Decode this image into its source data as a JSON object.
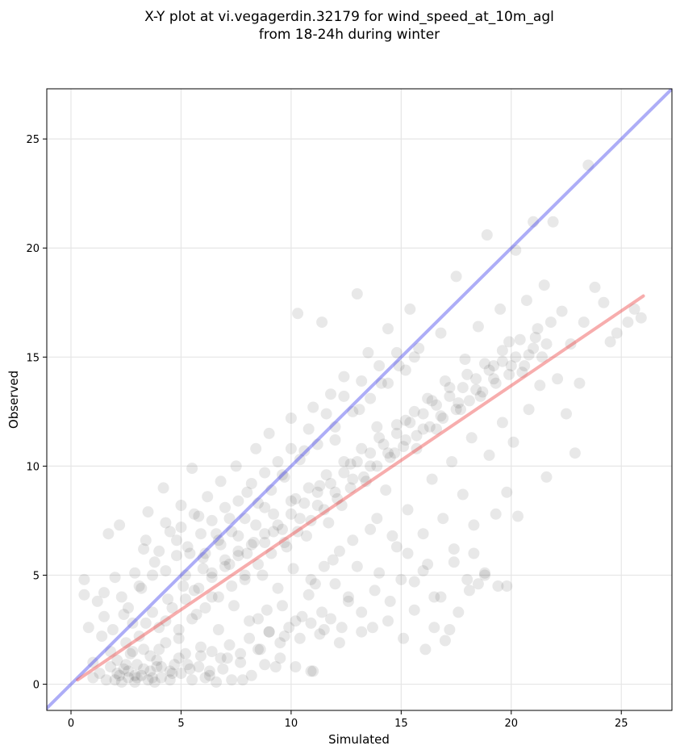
{
  "title": {
    "line1": "X-Y plot at vi.vegagerdin.32179 for wind_speed_at_10m_agl",
    "line2": "from 18-24h during winter"
  },
  "chart_data": {
    "type": "scatter",
    "title": "X-Y plot at vi.vegagerdin.32179 for wind_speed_at_10m_agl from 18-24h during winter",
    "xlabel": "Simulated",
    "ylabel": "Observed",
    "xlim": [
      -1.1,
      27.3
    ],
    "ylim": [
      -1.2,
      27.3
    ],
    "x_ticks": [
      0,
      5,
      10,
      15,
      20,
      25
    ],
    "y_ticks": [
      0,
      5,
      10,
      15,
      20,
      25
    ],
    "x_tick_labels": [
      "0",
      "5",
      "10",
      "15",
      "20",
      "25"
    ],
    "y_tick_labels": [
      "0",
      "5",
      "10",
      "15",
      "20",
      "25"
    ],
    "grid": true,
    "point_color": "#000000",
    "point_opacity": 0.09,
    "lines": [
      {
        "color": "#4a4aee",
        "x": [
          -1.1,
          27.3
        ],
        "y": [
          -1.1,
          27.3
        ]
      },
      {
        "color": "#ee4a4a",
        "x": [
          0.3,
          26.0
        ],
        "y": [
          0.2,
          17.8
        ]
      }
    ],
    "points": [
      [
        0.6,
        4.8
      ],
      [
        0.6,
        4.1
      ],
      [
        0.8,
        2.6
      ],
      [
        1.0,
        1.0
      ],
      [
        1.2,
        3.8
      ],
      [
        1.4,
        2.2
      ],
      [
        1.5,
        4.2
      ],
      [
        1.7,
        6.9
      ],
      [
        1.8,
        1.5
      ],
      [
        2.0,
        4.9
      ],
      [
        2.2,
        7.3
      ],
      [
        2.2,
        0.4
      ],
      [
        2.4,
        3.2
      ],
      [
        2.5,
        1.9
      ],
      [
        2.6,
        0.6
      ],
      [
        2.8,
        2.8
      ],
      [
        3.0,
        0.3
      ],
      [
        3.1,
        4.5
      ],
      [
        3.3,
        6.2
      ],
      [
        3.5,
        7.9
      ],
      [
        3.6,
        1.3
      ],
      [
        3.8,
        5.6
      ],
      [
        3.9,
        0.8
      ],
      [
        4.0,
        2.6
      ],
      [
        4.2,
        9.0
      ],
      [
        4.3,
        7.4
      ],
      [
        4.4,
        3.9
      ],
      [
        4.6,
        0.5
      ],
      [
        4.8,
        6.6
      ],
      [
        4.9,
        2.1
      ],
      [
        5.0,
        8.2
      ],
      [
        5.1,
        4.5
      ],
      [
        5.3,
        0.9
      ],
      [
        5.4,
        6.0
      ],
      [
        5.5,
        9.9
      ],
      [
        5.7,
        3.2
      ],
      [
        5.8,
        7.7
      ],
      [
        5.9,
        1.7
      ],
      [
        6.0,
        5.3
      ],
      [
        6.2,
        8.6
      ],
      [
        6.3,
        0.4
      ],
      [
        6.4,
        4.0
      ],
      [
        6.6,
        6.9
      ],
      [
        6.7,
        2.5
      ],
      [
        6.8,
        9.3
      ],
      [
        7.0,
        5.7
      ],
      [
        7.1,
        1.2
      ],
      [
        7.2,
        7.6
      ],
      [
        7.4,
        3.6
      ],
      [
        7.5,
        10.0
      ],
      [
        7.6,
        6.1
      ],
      [
        7.8,
        0.2
      ],
      [
        7.9,
        4.8
      ],
      [
        8.0,
        8.8
      ],
      [
        8.1,
        2.9
      ],
      [
        8.3,
        6.5
      ],
      [
        8.4,
        10.8
      ],
      [
        8.5,
        1.6
      ],
      [
        8.7,
        5.0
      ],
      [
        8.8,
        8.1
      ],
      [
        8.9,
        3.4
      ],
      [
        9.0,
        11.5
      ],
      [
        9.2,
        7.0
      ],
      [
        9.3,
        0.8
      ],
      [
        9.4,
        4.4
      ],
      [
        9.6,
        9.6
      ],
      [
        9.7,
        2.2
      ],
      [
        9.8,
        6.3
      ],
      [
        10.0,
        12.2
      ],
      [
        10.1,
        5.3
      ],
      [
        10.2,
        8.5
      ],
      [
        10.3,
        17.0
      ],
      [
        10.5,
        3.1
      ],
      [
        10.6,
        10.7
      ],
      [
        10.7,
        6.8
      ],
      [
        10.9,
        0.6
      ],
      [
        11.0,
        12.7
      ],
      [
        11.1,
        4.6
      ],
      [
        11.3,
        9.1
      ],
      [
        11.4,
        16.6
      ],
      [
        11.5,
        2.5
      ],
      [
        11.7,
        7.4
      ],
      [
        11.8,
        13.3
      ],
      [
        11.9,
        5.7
      ],
      [
        12.0,
        11.2
      ],
      [
        12.2,
        1.9
      ],
      [
        12.3,
        8.2
      ],
      [
        12.4,
        14.1
      ],
      [
        12.6,
        4.0
      ],
      [
        12.7,
        10.1
      ],
      [
        12.8,
        6.6
      ],
      [
        13.0,
        17.9
      ],
      [
        13.1,
        12.6
      ],
      [
        13.2,
        3.3
      ],
      [
        13.4,
        9.3
      ],
      [
        13.5,
        15.2
      ],
      [
        13.6,
        7.1
      ],
      [
        13.7,
        2.6
      ],
      [
        13.9,
        11.8
      ],
      [
        14.0,
        5.1
      ],
      [
        14.1,
        13.8
      ],
      [
        14.3,
        8.9
      ],
      [
        14.4,
        16.3
      ],
      [
        14.5,
        3.8
      ],
      [
        14.7,
        10.6
      ],
      [
        14.8,
        6.3
      ],
      [
        14.9,
        14.6
      ],
      [
        15.1,
        2.1
      ],
      [
        15.2,
        12.1
      ],
      [
        15.3,
        8.0
      ],
      [
        15.4,
        17.2
      ],
      [
        15.6,
        4.7
      ],
      [
        15.7,
        10.8
      ],
      [
        15.8,
        15.4
      ],
      [
        16.0,
        6.9
      ],
      [
        16.1,
        1.6
      ],
      [
        16.2,
        13.1
      ],
      [
        16.4,
        9.4
      ],
      [
        16.5,
        4.0
      ],
      [
        16.6,
        11.7
      ],
      [
        16.8,
        16.1
      ],
      [
        16.9,
        7.6
      ],
      [
        17.0,
        13.9
      ],
      [
        17.2,
        2.5
      ],
      [
        17.3,
        10.2
      ],
      [
        17.4,
        5.6
      ],
      [
        17.5,
        18.7
      ],
      [
        17.7,
        12.6
      ],
      [
        17.8,
        8.7
      ],
      [
        17.9,
        14.9
      ],
      [
        18.1,
        4.3
      ],
      [
        18.2,
        11.3
      ],
      [
        18.3,
        7.3
      ],
      [
        18.5,
        16.4
      ],
      [
        18.6,
        13.2
      ],
      [
        18.8,
        5.1
      ],
      [
        18.9,
        20.6
      ],
      [
        19.0,
        10.5
      ],
      [
        19.2,
        14.6
      ],
      [
        19.3,
        7.8
      ],
      [
        19.5,
        17.2
      ],
      [
        19.6,
        12.0
      ],
      [
        19.8,
        4.5
      ],
      [
        19.9,
        15.7
      ],
      [
        20.1,
        11.1
      ],
      [
        20.2,
        19.9
      ],
      [
        20.3,
        7.7
      ],
      [
        20.5,
        14.3
      ],
      [
        20.7,
        17.6
      ],
      [
        20.8,
        12.6
      ],
      [
        21.0,
        21.2
      ],
      [
        21.1,
        15.9
      ],
      [
        21.3,
        13.7
      ],
      [
        21.5,
        18.3
      ],
      [
        21.6,
        9.5
      ],
      [
        21.8,
        16.6
      ],
      [
        21.9,
        21.2
      ],
      [
        22.1,
        14.0
      ],
      [
        22.3,
        17.1
      ],
      [
        22.5,
        12.4
      ],
      [
        22.7,
        15.6
      ],
      [
        22.9,
        10.6
      ],
      [
        23.1,
        13.8
      ],
      [
        23.3,
        16.6
      ],
      [
        23.5,
        23.8
      ],
      [
        23.8,
        18.2
      ],
      [
        24.2,
        17.5
      ],
      [
        24.5,
        15.7
      ],
      [
        24.8,
        16.1
      ],
      [
        25.3,
        16.6
      ],
      [
        25.6,
        17.2
      ],
      [
        25.9,
        16.8
      ],
      [
        1.0,
        0.3
      ],
      [
        1.3,
        0.5
      ],
      [
        1.6,
        0.2
      ],
      [
        1.8,
        0.8
      ],
      [
        2.0,
        0.2
      ],
      [
        2.1,
        1.1
      ],
      [
        2.3,
        0.1
      ],
      [
        2.4,
        0.7
      ],
      [
        2.6,
        0.3
      ],
      [
        2.7,
        1.4
      ],
      [
        2.9,
        0.1
      ],
      [
        3.0,
        0.9
      ],
      [
        3.2,
        0.4
      ],
      [
        3.3,
        1.6
      ],
      [
        3.5,
        0.2
      ],
      [
        3.6,
        0.6
      ],
      [
        3.8,
        0.1
      ],
      [
        3.9,
        1.1
      ],
      [
        4.1,
        0.3
      ],
      [
        4.3,
        1.9
      ],
      [
        4.5,
        0.2
      ],
      [
        4.7,
        0.9
      ],
      [
        5.0,
        0.5
      ],
      [
        5.2,
        1.4
      ],
      [
        5.5,
        0.2
      ],
      [
        5.8,
        0.8
      ],
      [
        6.1,
        0.3
      ],
      [
        6.4,
        1.5
      ],
      [
        6.6,
        0.1
      ],
      [
        6.9,
        0.7
      ],
      [
        7.3,
        0.2
      ],
      [
        7.7,
        1.0
      ],
      [
        8.2,
        0.4
      ],
      [
        8.8,
        0.9
      ],
      [
        9.5,
        1.2
      ],
      [
        10.2,
        0.8
      ],
      [
        11.0,
        0.6
      ],
      [
        1.5,
        3.1
      ],
      [
        1.9,
        2.5
      ],
      [
        2.3,
        4.0
      ],
      [
        2.6,
        3.5
      ],
      [
        2.9,
        5.1
      ],
      [
        3.2,
        4.4
      ],
      [
        3.4,
        6.6
      ],
      [
        3.7,
        5.0
      ],
      [
        4.0,
        6.1
      ],
      [
        4.3,
        5.2
      ],
      [
        4.5,
        7.0
      ],
      [
        4.8,
        5.9
      ],
      [
        5.0,
        7.2
      ],
      [
        5.3,
        6.3
      ],
      [
        5.6,
        7.8
      ],
      [
        5.9,
        6.9
      ],
      [
        6.1,
        6.0
      ],
      [
        6.4,
        7.5
      ],
      [
        6.7,
        6.6
      ],
      [
        7.0,
        8.1
      ],
      [
        7.3,
        7.0
      ],
      [
        7.6,
        8.4
      ],
      [
        7.9,
        7.6
      ],
      [
        8.2,
        9.2
      ],
      [
        8.5,
        8.3
      ],
      [
        8.8,
        9.7
      ],
      [
        9.1,
        8.9
      ],
      [
        9.4,
        10.2
      ],
      [
        9.7,
        9.5
      ],
      [
        10.0,
        10.8
      ],
      [
        10.4,
        10.3
      ],
      [
        10.8,
        11.7
      ],
      [
        11.2,
        11.0
      ],
      [
        11.6,
        12.4
      ],
      [
        12.0,
        11.8
      ],
      [
        12.4,
        13.2
      ],
      [
        12.8,
        12.5
      ],
      [
        13.2,
        13.9
      ],
      [
        13.6,
        13.1
      ],
      [
        14.0,
        14.6
      ],
      [
        14.4,
        13.8
      ],
      [
        14.8,
        15.2
      ],
      [
        15.2,
        14.4
      ],
      [
        15.6,
        15.0
      ],
      [
        2.8,
        1.5
      ],
      [
        3.1,
        2.2
      ],
      [
        3.4,
        2.8
      ],
      [
        3.7,
        3.3
      ],
      [
        4.0,
        1.6
      ],
      [
        4.3,
        2.9
      ],
      [
        4.6,
        3.5
      ],
      [
        4.9,
        2.5
      ],
      [
        5.2,
        3.9
      ],
      [
        5.5,
        3.0
      ],
      [
        5.8,
        4.4
      ],
      [
        6.1,
        3.5
      ],
      [
        6.4,
        4.9
      ],
      [
        6.7,
        4.0
      ],
      [
        7.0,
        5.4
      ],
      [
        7.3,
        4.5
      ],
      [
        7.6,
        5.9
      ],
      [
        7.9,
        5.0
      ],
      [
        8.2,
        6.4
      ],
      [
        8.5,
        5.5
      ],
      [
        8.8,
        6.9
      ],
      [
        9.1,
        6.0
      ],
      [
        9.4,
        7.3
      ],
      [
        9.7,
        6.5
      ],
      [
        10.0,
        7.8
      ],
      [
        10.3,
        7.0
      ],
      [
        10.6,
        8.3
      ],
      [
        10.9,
        7.5
      ],
      [
        11.2,
        8.8
      ],
      [
        11.5,
        8.0
      ],
      [
        11.8,
        9.2
      ],
      [
        12.1,
        8.5
      ],
      [
        12.4,
        9.7
      ],
      [
        12.7,
        9.0
      ],
      [
        13.0,
        10.2
      ],
      [
        13.3,
        9.5
      ],
      [
        13.6,
        10.6
      ],
      [
        13.9,
        10.0
      ],
      [
        14.2,
        11.0
      ],
      [
        14.5,
        10.4
      ],
      [
        14.8,
        11.5
      ],
      [
        15.1,
        10.9
      ],
      [
        15.4,
        12.0
      ],
      [
        15.7,
        11.4
      ],
      [
        16.0,
        12.4
      ],
      [
        16.3,
        11.8
      ],
      [
        16.6,
        12.8
      ],
      [
        16.9,
        12.2
      ],
      [
        17.2,
        13.2
      ],
      [
        17.5,
        12.6
      ],
      [
        17.8,
        13.6
      ],
      [
        18.1,
        13.0
      ],
      [
        18.4,
        14.0
      ],
      [
        18.7,
        13.4
      ],
      [
        19.0,
        14.4
      ],
      [
        19.3,
        13.8
      ],
      [
        19.6,
        14.8
      ],
      [
        19.9,
        14.2
      ],
      [
        20.2,
        15.0
      ],
      [
        20.6,
        14.6
      ],
      [
        21.0,
        15.4
      ],
      [
        21.4,
        15.0
      ],
      [
        8.5,
        3.0
      ],
      [
        9.0,
        2.4
      ],
      [
        9.6,
        3.6
      ],
      [
        10.2,
        2.9
      ],
      [
        10.8,
        4.1
      ],
      [
        11.4,
        3.3
      ],
      [
        12.0,
        4.6
      ],
      [
        12.6,
        3.8
      ],
      [
        13.2,
        2.4
      ],
      [
        13.8,
        4.3
      ],
      [
        14.4,
        2.9
      ],
      [
        15.0,
        4.8
      ],
      [
        15.6,
        3.4
      ],
      [
        16.2,
        5.5
      ],
      [
        16.8,
        4.0
      ],
      [
        17.4,
        6.2
      ],
      [
        18.0,
        4.8
      ],
      [
        17.0,
        2.0
      ],
      [
        16.5,
        2.6
      ],
      [
        18.5,
        4.6
      ],
      [
        19.4,
        4.5
      ],
      [
        18.8,
        5.0
      ],
      [
        19.8,
        8.8
      ],
      [
        18.3,
        6.0
      ],
      [
        17.6,
        3.3
      ],
      [
        16.0,
        5.2
      ],
      [
        15.3,
        6.0
      ],
      [
        14.6,
        6.8
      ],
      [
        13.9,
        7.6
      ],
      [
        13.0,
        5.4
      ],
      [
        12.2,
        6.1
      ],
      [
        11.5,
        5.4
      ],
      [
        10.9,
        4.8
      ],
      [
        2.1,
        0.5
      ],
      [
        2.5,
        0.9
      ],
      [
        2.9,
        0.4
      ],
      [
        3.3,
        0.7
      ],
      [
        3.7,
        0.3
      ],
      [
        4.1,
        0.8
      ],
      [
        4.5,
        0.6
      ],
      [
        4.9,
        1.2
      ],
      [
        5.4,
        0.7
      ],
      [
        5.9,
        1.3
      ],
      [
        6.3,
        0.6
      ],
      [
        6.8,
        1.2
      ],
      [
        7.2,
        1.8
      ],
      [
        7.7,
        1.4
      ],
      [
        8.1,
        2.1
      ],
      [
        8.6,
        1.6
      ],
      [
        9.0,
        2.4
      ],
      [
        9.5,
        1.9
      ],
      [
        9.9,
        2.6
      ],
      [
        10.4,
        2.1
      ],
      [
        10.9,
        2.8
      ],
      [
        11.3,
        2.3
      ],
      [
        11.8,
        3.0
      ],
      [
        12.3,
        2.6
      ],
      [
        5.2,
        5.0
      ],
      [
        5.6,
        4.3
      ],
      [
        6.0,
        5.8
      ],
      [
        6.4,
        5.1
      ],
      [
        6.8,
        6.4
      ],
      [
        7.2,
        5.5
      ],
      [
        7.6,
        6.8
      ],
      [
        8.0,
        6.0
      ],
      [
        8.4,
        7.3
      ],
      [
        8.8,
        6.5
      ],
      [
        9.2,
        7.8
      ],
      [
        9.6,
        7.1
      ],
      [
        10.0,
        8.4
      ],
      [
        10.4,
        7.6
      ],
      [
        10.8,
        9.0
      ],
      [
        11.2,
        8.2
      ],
      [
        11.6,
        9.6
      ],
      [
        12.0,
        8.8
      ],
      [
        12.4,
        10.2
      ],
      [
        12.8,
        9.4
      ],
      [
        13.2,
        10.8
      ],
      [
        13.6,
        10.0
      ],
      [
        14.0,
        11.3
      ],
      [
        14.4,
        10.6
      ],
      [
        14.8,
        11.9
      ],
      [
        15.2,
        11.2
      ],
      [
        15.6,
        12.5
      ],
      [
        16.0,
        11.7
      ],
      [
        16.4,
        13.0
      ],
      [
        16.8,
        12.3
      ],
      [
        17.2,
        13.6
      ],
      [
        17.6,
        12.9
      ],
      [
        18.0,
        14.2
      ],
      [
        18.4,
        13.5
      ],
      [
        18.8,
        14.7
      ],
      [
        19.2,
        14.0
      ],
      [
        19.6,
        15.3
      ],
      [
        20.0,
        14.6
      ],
      [
        20.4,
        15.8
      ],
      [
        20.8,
        15.1
      ],
      [
        21.2,
        16.3
      ],
      [
        21.6,
        15.6
      ]
    ]
  }
}
